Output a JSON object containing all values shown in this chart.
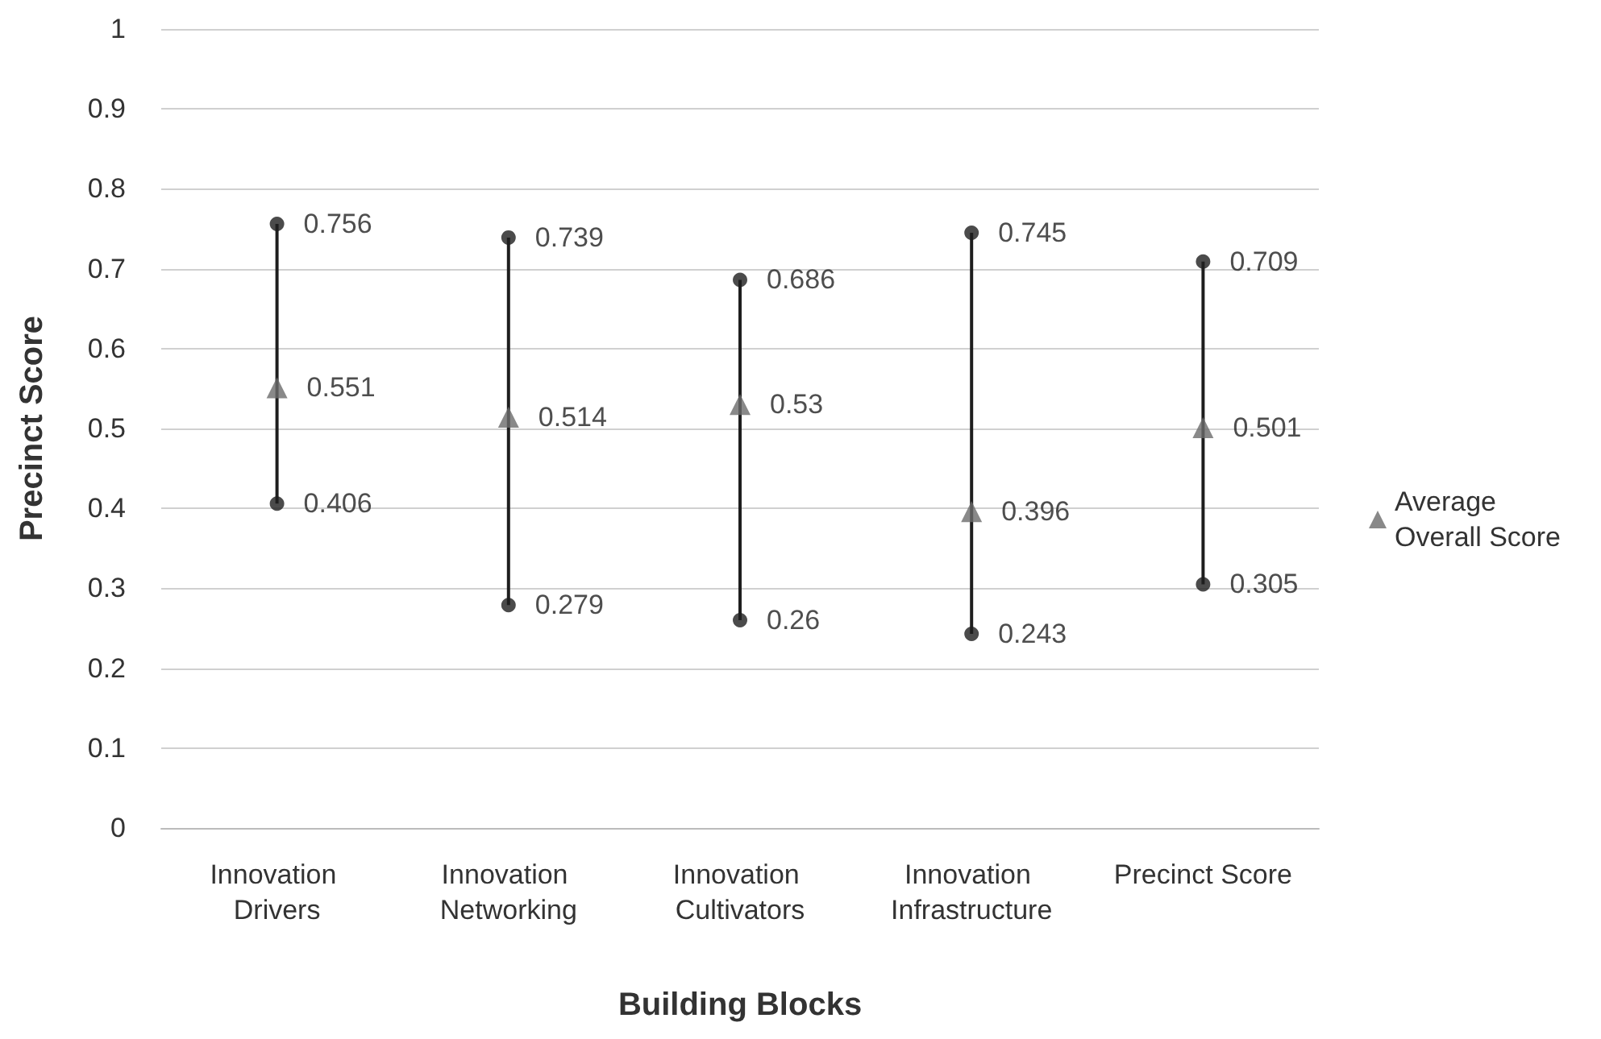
{
  "chart_data": {
    "type": "scatter",
    "xlabel": "Building Blocks",
    "ylabel": "Precinct Score",
    "categories": [
      "Innovation Drivers",
      "Innovation Networking",
      "Innovation Cultivators",
      "Innovation Infrastructure",
      "Precinct Score"
    ],
    "series": [
      {
        "type": "bar",
        "color": "#1e1e1e",
        "base": [
          0.406,
          0.279,
          0.26,
          0.243,
          0.305
        ],
        "values": [
          0.35,
          0.46,
          0.426,
          0.502,
          0.404
        ]
      },
      {
        "marker": "circle",
        "color": "#1e1e1e",
        "values": [
          0.756,
          0.739,
          0.686,
          0.745,
          0.709
        ],
        "value_labels": [
          "0.756",
          "0.739",
          "0.686",
          "0.745",
          "0.709"
        ]
      },
      {
        "marker": "circle",
        "color": "#1e1e1e",
        "values": [
          0.406,
          0.279,
          0.26,
          0.243,
          0.305
        ],
        "value_labels": [
          "0.406",
          "0.279",
          "0.26",
          "0.243",
          "0.305"
        ]
      },
      {
        "name": "Average Overall Score",
        "marker": "triangle",
        "color": "#6b6b6b",
        "values": [
          0.551,
          0.514,
          0.53,
          0.396,
          0.501
        ],
        "value_labels": [
          "0.551",
          "0.514",
          "0.53",
          "0.396",
          "0.501"
        ]
      }
    ],
    "ylim": [
      0,
      1
    ],
    "yticks": [
      0,
      0.1,
      0.2,
      0.3,
      0.4,
      0.5,
      0.6,
      0.7,
      0.8,
      0.9,
      1
    ],
    "grid": "y",
    "legend": "right"
  }
}
